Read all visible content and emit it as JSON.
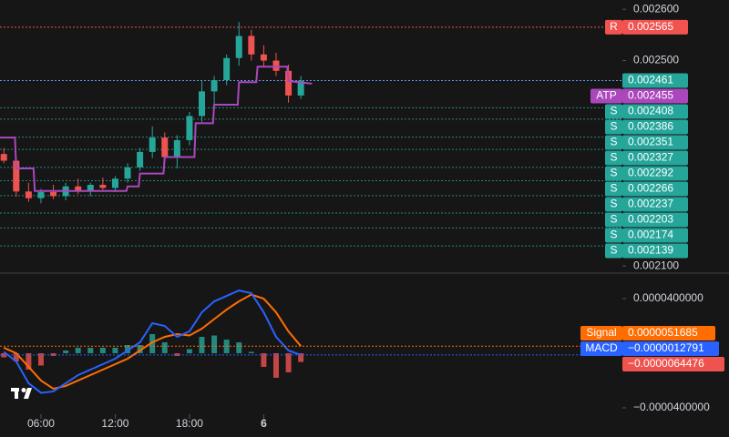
{
  "chart_data": {
    "type": "candlestick",
    "x": [
      3,
      4,
      5,
      6,
      7,
      8,
      9,
      10,
      11,
      12,
      13,
      14,
      15,
      16,
      17,
      18,
      19,
      20,
      21,
      22,
      23,
      24,
      25,
      26,
      27
    ],
    "open": [
      0.002318,
      0.002305,
      0.002245,
      0.002232,
      0.002244,
      0.002236,
      0.002255,
      0.002246,
      0.002258,
      0.002252,
      0.00227,
      0.002292,
      0.002322,
      0.00235,
      0.002312,
      0.002345,
      0.002392,
      0.00244,
      0.002462,
      0.002505,
      0.002548,
      0.002512,
      0.0025,
      0.00248,
      0.002432
    ],
    "high": [
      0.00233,
      0.002312,
      0.002262,
      0.00225,
      0.002258,
      0.002262,
      0.00227,
      0.002262,
      0.002272,
      0.002275,
      0.0023,
      0.00233,
      0.002372,
      0.00236,
      0.002355,
      0.0024,
      0.00246,
      0.00247,
      0.002512,
      0.002575,
      0.00256,
      0.00253,
      0.002515,
      0.002492,
      0.00247
    ],
    "low": [
      0.0023,
      0.002235,
      0.002225,
      0.002222,
      0.00223,
      0.002228,
      0.00224,
      0.002236,
      0.002248,
      0.002244,
      0.002262,
      0.002285,
      0.00231,
      0.0023,
      0.00229,
      0.002335,
      0.00238,
      0.00241,
      0.002452,
      0.00249,
      0.0025,
      0.002488,
      0.00247,
      0.002418,
      0.002425
    ],
    "close": [
      0.002305,
      0.002245,
      0.002232,
      0.002244,
      0.002236,
      0.002255,
      0.002246,
      0.002258,
      0.002252,
      0.00227,
      0.002292,
      0.002322,
      0.00235,
      0.002312,
      0.002345,
      0.002392,
      0.00244,
      0.002462,
      0.002505,
      0.002548,
      0.002512,
      0.0025,
      0.00248,
      0.002432,
      0.002461
    ],
    "up_color": "#26a69a",
    "down_color": "#ef5350",
    "xlim": [
      2.69,
      52.98
    ],
    "xticks": [
      {
        "value": 6,
        "label": "06:00"
      },
      {
        "value": 12,
        "label": "12:00"
      },
      {
        "value": 18,
        "label": "18:00"
      },
      {
        "value": 24,
        "label": "6"
      }
    ],
    "ylim": [
      0.002086,
      0.002618
    ],
    "yticks": [
      {
        "value": 0.0021,
        "label": "0.002100"
      },
      {
        "value": 0.0025,
        "label": "0.002500"
      },
      {
        "value": 0.0026,
        "label": "0.002600"
      }
    ],
    "levels": {
      "resistance": {
        "tag": "R",
        "value": 0.002565,
        "color": "#f05350"
      },
      "last": {
        "value": 0.002461,
        "color": "#26a69a"
      },
      "atp": {
        "tag": "ATP",
        "value": 0.002455,
        "color": "#ab47bc"
      },
      "supports": {
        "tag": "S",
        "color": "#26a69a",
        "values": [
          0.002408,
          0.002386,
          0.002351,
          0.002327,
          0.002292,
          0.002266,
          0.002237,
          0.002203,
          0.002174,
          0.002139
        ]
      }
    },
    "atp_series": {
      "name": "ATP",
      "color": "#ab47bc",
      "x": [
        2.69,
        3.9,
        4.0,
        5.4,
        5.5,
        12.9,
        13.0,
        13.9,
        14.0,
        15.9,
        16.0,
        18.4,
        18.5,
        19.9,
        20.0,
        21.9,
        22.0,
        23.4,
        23.5,
        25.9,
        26.0,
        27.9
      ],
      "values": [
        0.00235,
        0.00235,
        0.00229,
        0.00229,
        0.002246,
        0.002246,
        0.002255,
        0.002255,
        0.00228,
        0.00228,
        0.002312,
        0.002312,
        0.002378,
        0.002378,
        0.002414,
        0.002414,
        0.002458,
        0.002458,
        0.002488,
        0.002488,
        0.00246,
        0.002455
      ]
    },
    "macd_pane": {
      "ylim": [
        -4.47e-05,
        5.87e-05
      ],
      "yticks": [
        {
          "value": -4e-05,
          "label": "−0.0000400000"
        },
        {
          "value": 4e-05,
          "label": "0.0000400000"
        }
      ],
      "macd": {
        "name": "MACD",
        "color": "#2962ff",
        "values": [
          1e-06,
          -6e-06,
          -2.2e-05,
          -2.9e-05,
          -2.8e-05,
          -2.2e-05,
          -1.6e-05,
          -1.2e-05,
          -8e-06,
          -4e-06,
          2e-06,
          8e-06,
          2.2e-05,
          2e-05,
          1.2e-05,
          1.6e-05,
          3e-05,
          3.8e-05,
          4.2e-05,
          4.6e-05,
          4.4e-05,
          3e-05,
          1.2e-05,
          2e-06,
          -1.3e-06
        ],
        "last": {
          "value": -1.2791e-06,
          "label": "−0.0000012791"
        }
      },
      "signal": {
        "name": "Signal",
        "color": "#ff6d00",
        "values": [
          4e-06,
          0.0,
          -1e-05,
          -2e-05,
          -2.6e-05,
          -2.4e-05,
          -2e-05,
          -1.6e-05,
          -1.2e-05,
          -8e-06,
          -4e-06,
          2e-06,
          8e-06,
          1.2e-05,
          1.4e-05,
          1.3e-05,
          1.8e-05,
          2.5e-05,
          3.2e-05,
          3.8e-05,
          4.3e-05,
          4e-05,
          3e-05,
          1.6e-05,
          5.2e-06
        ],
        "last": 5.1685e-06
      },
      "histogram": {
        "up_color": "#26a69a",
        "down_color": "#ef5350",
        "values": [
          -3e-06,
          -6e-06,
          -1.2e-05,
          -9e-06,
          -2e-06,
          2e-06,
          4e-06,
          4e-06,
          4e-06,
          4e-06,
          6e-06,
          6e-06,
          1.4e-05,
          8e-06,
          -2e-06,
          3e-06,
          1.2e-05,
          1.3e-05,
          1e-05,
          8e-06,
          1e-06,
          -1e-05,
          -1.8e-05,
          -1.4e-05,
          -6.4e-06
        ],
        "last": {
          "value": -6.4476e-06,
          "label": "−0.0000064476"
        }
      }
    }
  }
}
